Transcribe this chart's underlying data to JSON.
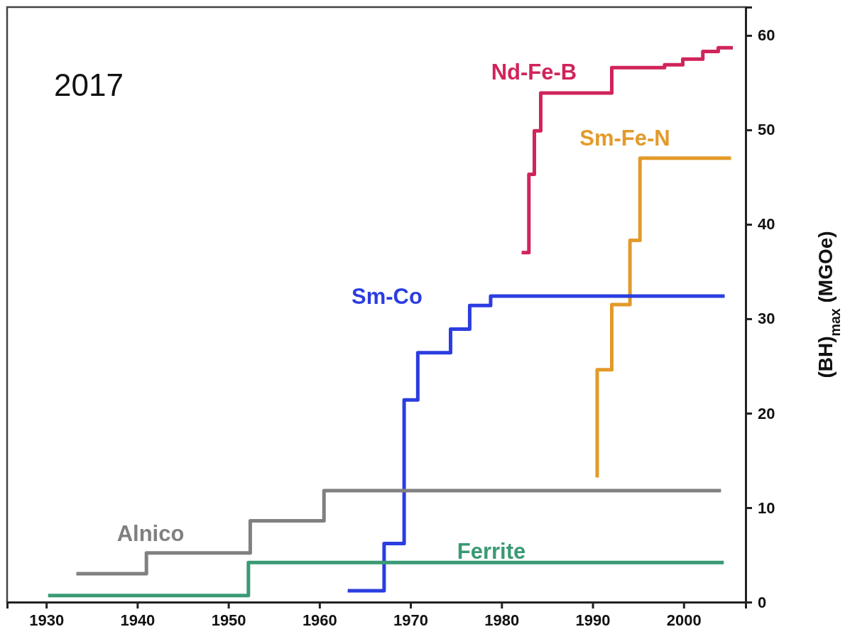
{
  "chart_data": {
    "type": "step",
    "title": "2017",
    "ylabel": "(BH)$_{max}$ (MGOe)",
    "xlim": [
      1925.7,
      2006.8
    ],
    "xticks": [
      1930,
      1940,
      1950,
      1960,
      1970,
      1980,
      1990,
      2000
    ],
    "ylim": [
      0,
      63
    ],
    "yticks": [
      0,
      10,
      20,
      30,
      40,
      50,
      60
    ],
    "grid": false,
    "legend": false,
    "marker": "none",
    "line_style": "solid",
    "series": [
      {
        "name": "Nd-Fe-B",
        "color": "#d0245a",
        "x": [
          1982.2,
          1983.0,
          1983.6,
          1984.3,
          1992.1,
          1997.9,
          1999.9,
          2002.1,
          2003.8,
          2005.4
        ],
        "values": [
          37.0,
          45.3,
          49.9,
          53.9,
          56.6,
          56.9,
          57.5,
          58.3,
          58.7,
          58.7
        ]
      },
      {
        "name": "Sm-Fe-N",
        "color": "#e39a2a",
        "x": [
          1990.5,
          1990.5,
          1992.1,
          1994.1,
          1995.2,
          2005.2
        ],
        "values": [
          13.2,
          24.6,
          31.5,
          38.3,
          47.0,
          47.0
        ]
      },
      {
        "name": "Sm-Co",
        "color": "#2b3de0",
        "x": [
          1963.1,
          1967.1,
          1969.3,
          1970.8,
          1974.4,
          1976.5,
          1978.8,
          2004.5
        ],
        "values": [
          1.2,
          6.2,
          21.4,
          26.4,
          28.9,
          31.4,
          32.4,
          32.4
        ]
      },
      {
        "name": "Alnico",
        "color": "#808080",
        "x": [
          1933.3,
          1941.0,
          1952.4,
          1960.5,
          2004.1
        ],
        "values": [
          3.0,
          5.2,
          8.6,
          11.8,
          11.8
        ]
      },
      {
        "name": "Ferrite",
        "color": "#3a9a74",
        "x": [
          1930.2,
          1952.2,
          2004.4
        ],
        "values": [
          0.7,
          4.2,
          4.2
        ]
      }
    ]
  }
}
